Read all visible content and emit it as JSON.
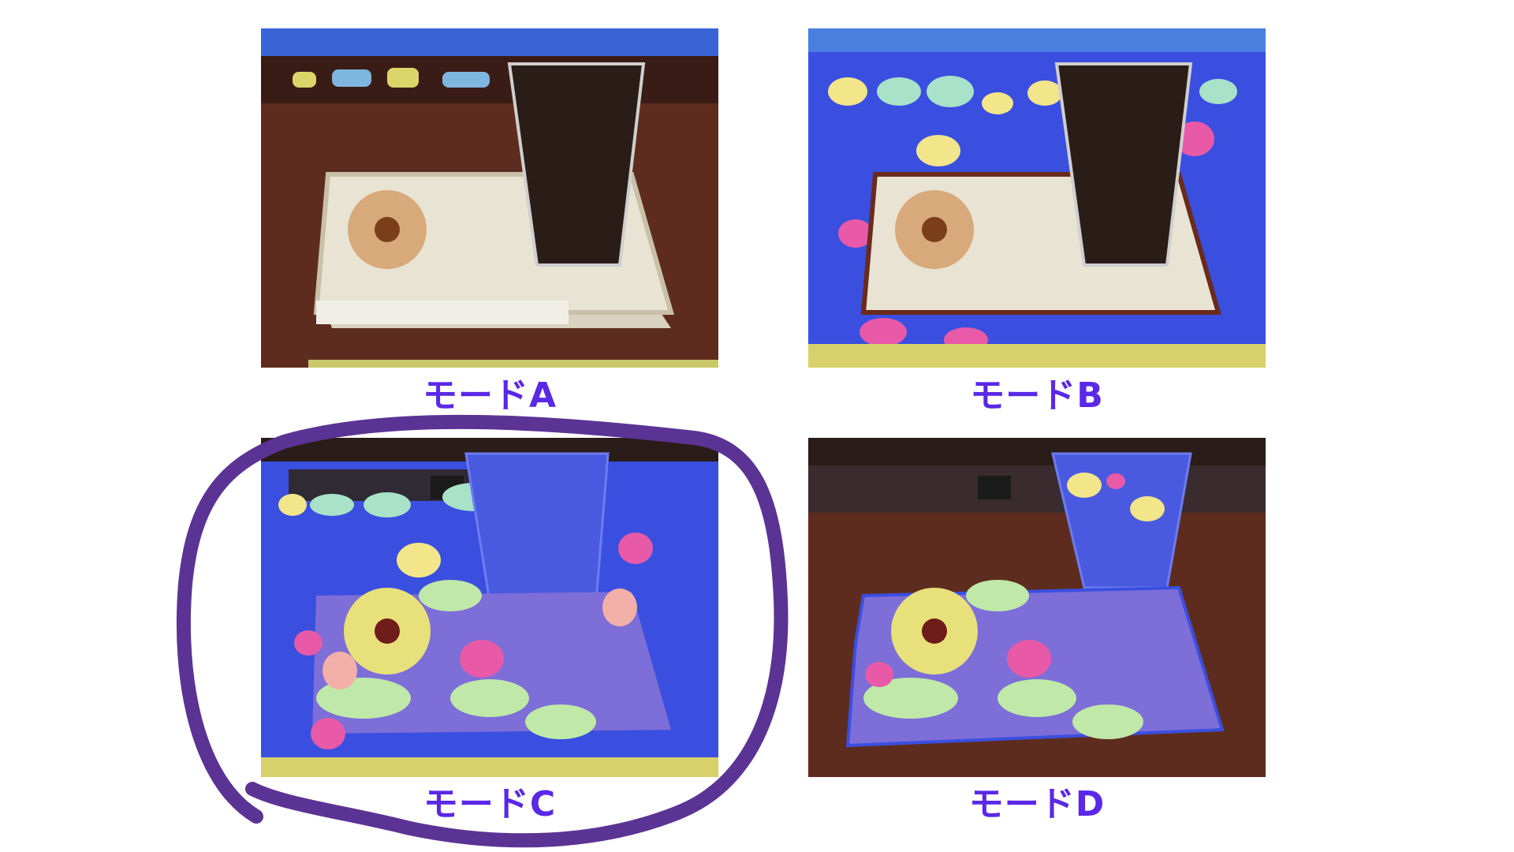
{
  "panels": [
    {
      "id": "a",
      "label": "モードA"
    },
    {
      "id": "b",
      "label": "モードB"
    },
    {
      "id": "c",
      "label": "モードC"
    },
    {
      "id": "d",
      "label": "モードD"
    }
  ],
  "colors": {
    "label": "#5a28e6",
    "highlight_circle": "#5b3394",
    "overlay_blue": "#3a4fe0",
    "table_brown": "#5a2a1c"
  },
  "highlighted_panel": "c"
}
